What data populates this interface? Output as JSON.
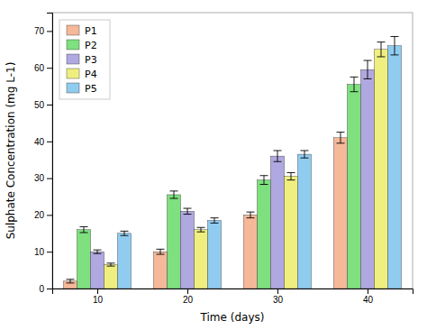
{
  "chart_data": {
    "type": "bar",
    "x": [
      10,
      20,
      30,
      40
    ],
    "series": [
      {
        "name": "P1",
        "color": "#F5B899",
        "values": [
          2.0,
          10.0,
          20.0,
          41.0
        ],
        "errors": [
          0.5,
          0.7,
          0.8,
          1.5
        ]
      },
      {
        "name": "P2",
        "color": "#7EE07E",
        "values": [
          16.0,
          25.5,
          29.5,
          55.5
        ],
        "errors": [
          0.8,
          1.0,
          1.2,
          2.0
        ]
      },
      {
        "name": "P3",
        "color": "#B0A8E0",
        "values": [
          10.0,
          21.0,
          36.0,
          59.5
        ],
        "errors": [
          0.5,
          0.8,
          1.5,
          2.5
        ]
      },
      {
        "name": "P4",
        "color": "#EFEF80",
        "values": [
          6.5,
          16.0,
          30.5,
          65.0
        ],
        "errors": [
          0.4,
          0.6,
          1.0,
          2.0
        ]
      },
      {
        "name": "P5",
        "color": "#90CCF0",
        "values": [
          15.0,
          18.5,
          36.5,
          66.0
        ],
        "errors": [
          0.6,
          0.7,
          1.0,
          2.5
        ]
      }
    ],
    "xlabel": "Time (days)",
    "ylabel": "Sulphate Concentration (mg L-1)",
    "xlim": [
      5,
      45
    ],
    "xticks": [
      10,
      20,
      30,
      40
    ],
    "ylim": [
      0,
      75
    ],
    "yticks": [
      0,
      10,
      20,
      30,
      40,
      50,
      60,
      70
    ],
    "grid": false,
    "legend": "upper left"
  }
}
